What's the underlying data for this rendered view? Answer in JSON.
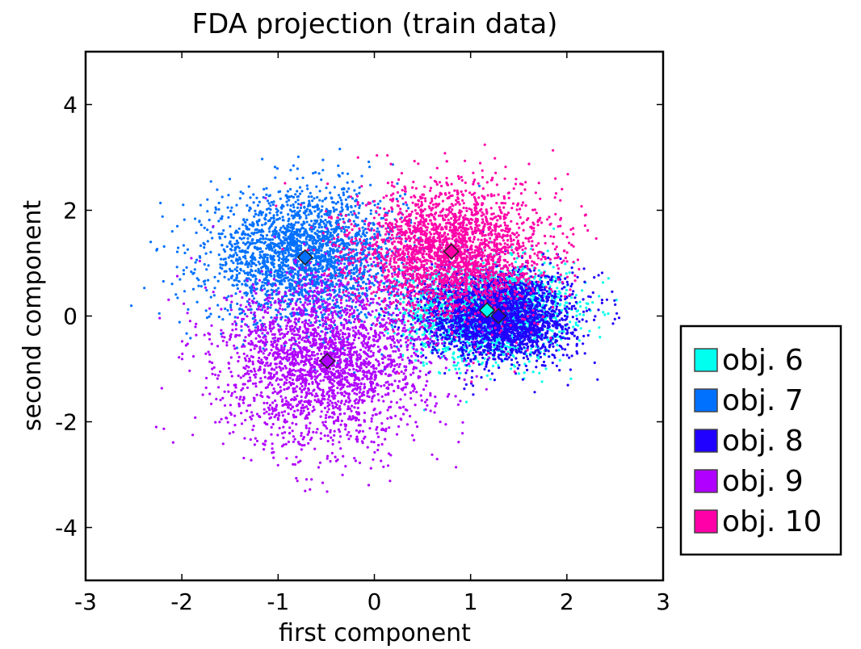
{
  "chart_data": {
    "type": "scatter",
    "title": "FDA projection (train data)",
    "xlabel": "first component",
    "ylabel": "second component",
    "xlim": [
      -3,
      3
    ],
    "ylim": [
      -5,
      5
    ],
    "xticks": [
      -3,
      -2,
      -1,
      0,
      1,
      2,
      3
    ],
    "yticks": [
      -4,
      -2,
      0,
      2,
      4
    ],
    "xtick_labels": [
      "-3",
      "-2",
      "-1",
      "0",
      "1",
      "2",
      "3"
    ],
    "ytick_labels": [
      "-4",
      "-2",
      "0",
      "2",
      "4"
    ],
    "grid": false,
    "legend_position": "outside-right",
    "series": [
      {
        "name": "obj. 6",
        "color": "#00ffee",
        "centroid": [
          1.17,
          0.11
        ],
        "std": [
          0.42,
          0.45
        ],
        "n_points": 2200
      },
      {
        "name": "obj. 7",
        "color": "#0070ff",
        "centroid": [
          -0.72,
          1.11
        ],
        "std": [
          0.5,
          0.62
        ],
        "n_points": 2500
      },
      {
        "name": "obj. 8",
        "color": "#2000ff",
        "centroid": [
          1.29,
          0.0
        ],
        "std": [
          0.38,
          0.42
        ],
        "n_points": 2500
      },
      {
        "name": "obj. 9",
        "color": "#b000ff",
        "centroid": [
          -0.49,
          -0.85
        ],
        "std": [
          0.55,
          0.8
        ],
        "n_points": 2500
      },
      {
        "name": "obj. 10",
        "color": "#ff00a8",
        "centroid": [
          0.8,
          1.22
        ],
        "std": [
          0.5,
          0.62
        ],
        "n_points": 2500
      }
    ]
  }
}
